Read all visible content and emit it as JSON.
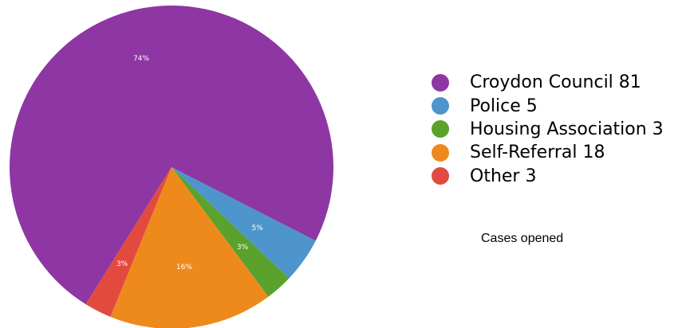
{
  "chart_data": {
    "type": "pie",
    "caption": "Cases opened",
    "slices": [
      {
        "label": "Croydon Council",
        "value": 81,
        "percent_label": "74%",
        "color": "#8e36a3"
      },
      {
        "label": "Police",
        "value": 5,
        "percent_label": "5%",
        "color": "#4d95cc"
      },
      {
        "label": "Housing Association",
        "value": 3,
        "percent_label": "3%",
        "color": "#5aa22c"
      },
      {
        "label": "Self-Referral",
        "value": 18,
        "percent_label": "16%",
        "color": "#ee8a1c"
      },
      {
        "label": "Other",
        "value": 3,
        "percent_label": "3%",
        "color": "#e24a40"
      }
    ],
    "legend": [
      "Croydon Council 81",
      "Police 5",
      "Housing Association 3",
      "Self-Referral 18",
      "Other 3"
    ],
    "legend_position": "right"
  }
}
